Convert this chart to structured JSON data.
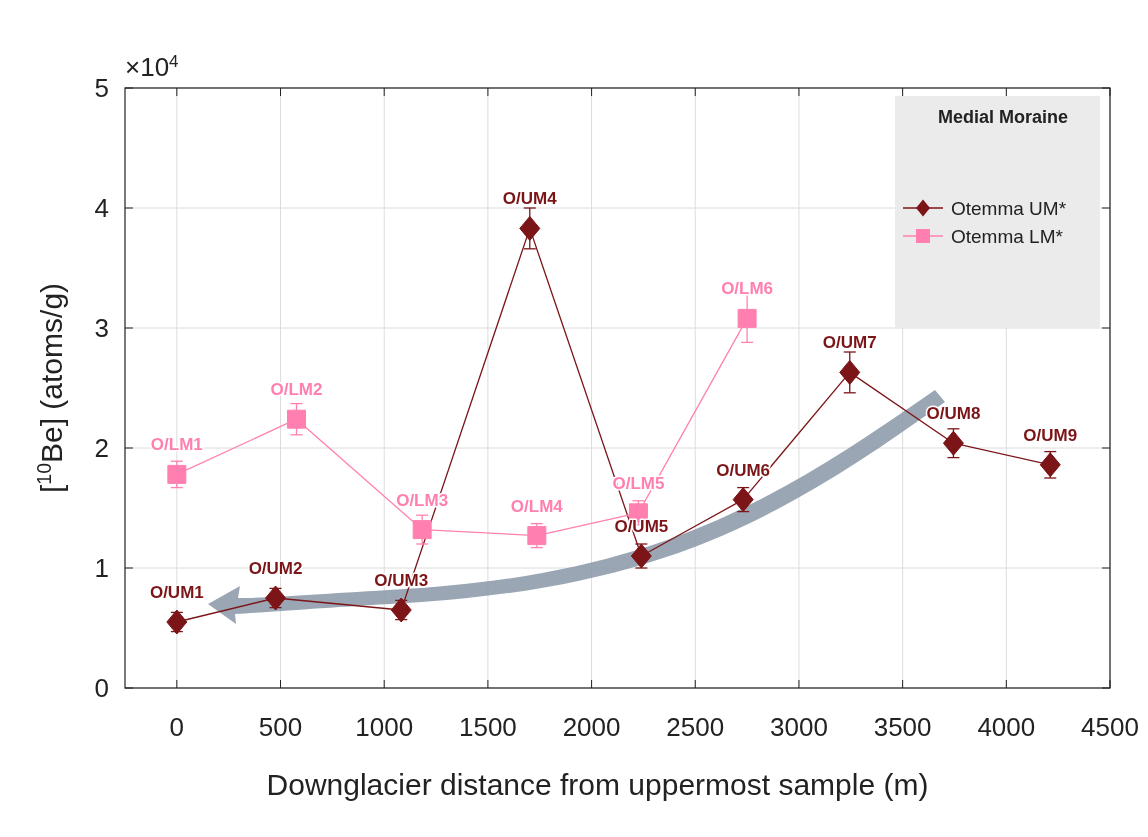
{
  "chart_data": {
    "type": "line",
    "xlabel": "Downglacier distance from uppermost sample (m)",
    "ylabel": "[$^{10}$Be] (atoms/g)",
    "legend_title": "Medial Moraine",
    "xlim": [
      -250,
      4500
    ],
    "xticks": [
      0,
      500,
      1000,
      1500,
      2000,
      2500,
      3000,
      3500,
      4000,
      4500
    ],
    "ylim": [
      0,
      5
    ],
    "yticks": [
      0,
      1,
      2,
      3,
      4,
      5
    ],
    "grid": true,
    "legend": "top right",
    "series": [
      {
        "name": "Otemma UM*",
        "color": "#7b1518",
        "marker": "diamond",
        "x": [
          0,
          476,
          1082,
          1702,
          2240,
          2731,
          3245,
          3745,
          4212
        ],
        "values": [
          0.55,
          0.75,
          0.65,
          3.83,
          1.1,
          1.57,
          2.63,
          2.04,
          1.86
        ],
        "errors": [
          0.08,
          0.08,
          0.08,
          0.17,
          0.1,
          0.1,
          0.17,
          0.12,
          0.11
        ]
      },
      {
        "name": "Otemma LM*",
        "color": "#ff80b0",
        "marker": "square",
        "x": [
          0,
          577,
          1183,
          1736,
          2226,
          2750
        ],
        "values": [
          1.78,
          2.24,
          1.32,
          1.27,
          1.46,
          3.08
        ],
        "errors": [
          0.11,
          0.13,
          0.12,
          0.1,
          0.1,
          0.2
        ]
      }
    ],
    "annotations": [
      "×10$^{4}$",
      {
        "text": "O/UM1",
        "x": 0,
        "y": 0.55
      },
      {
        "text": "O/UM2",
        "x": 476,
        "y": 0.75
      },
      {
        "text": "O/UM3",
        "x": 1082,
        "y": 0.65
      },
      {
        "text": "O/UM4",
        "x": 1702,
        "y": 3.83
      },
      {
        "text": "O/UM5",
        "x": 2240,
        "y": 1.1
      },
      {
        "text": "O/UM6",
        "x": 2731,
        "y": 1.57
      },
      {
        "text": "O/UM7",
        "x": 3245,
        "y": 2.63
      },
      {
        "text": "O/UM8",
        "x": 3745,
        "y": 2.04
      },
      {
        "text": "O/UM9",
        "x": 4212,
        "y": 1.86
      },
      {
        "text": "O/LM1",
        "x": 0,
        "y": 1.78
      },
      {
        "text": "O/LM2",
        "x": 577,
        "y": 2.24
      },
      {
        "text": "O/LM3",
        "x": 1183,
        "y": 1.32
      },
      {
        "text": "O/LM4",
        "x": 1736,
        "y": 1.27
      },
      {
        "text": "O/LM5",
        "x": 2226,
        "y": 1.46
      },
      {
        "text": "O/LM6",
        "x": 2750,
        "y": 3.08
      }
    ]
  }
}
